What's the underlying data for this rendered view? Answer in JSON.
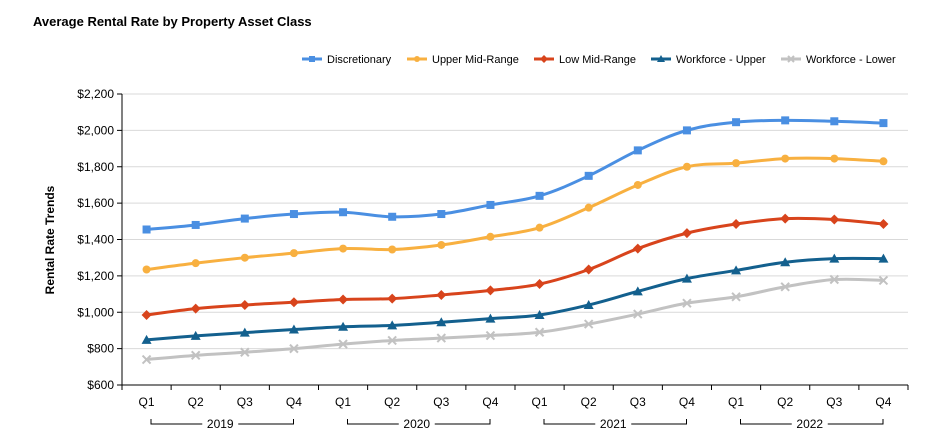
{
  "chart_data": {
    "type": "line",
    "title": "Average Rental Rate by Property Asset Class",
    "ylabel": "Rental Rate Trends",
    "xlabel": "",
    "ylim": [
      600,
      2200
    ],
    "y_ticks": [
      600,
      800,
      1000,
      1200,
      1400,
      1600,
      1800,
      2000,
      2200
    ],
    "y_tick_labels": [
      "$600",
      "$800",
      "$1,000",
      "$1,200",
      "$1,400",
      "$1,600",
      "$1,800",
      "$2,000",
      "$2,200"
    ],
    "grid": true,
    "legend_position": "top-right",
    "categories": [
      "Q1",
      "Q2",
      "Q3",
      "Q4",
      "Q1",
      "Q2",
      "Q3",
      "Q4",
      "Q1",
      "Q2",
      "Q3",
      "Q4",
      "Q1",
      "Q2",
      "Q3",
      "Q4"
    ],
    "groups": [
      {
        "label": "2019",
        "count": 4
      },
      {
        "label": "2020",
        "count": 4
      },
      {
        "label": "2021",
        "count": 4
      },
      {
        "label": "2022",
        "count": 4
      }
    ],
    "series": [
      {
        "name": "Discretionary",
        "color": "#4a8fe2",
        "marker": "square",
        "values": [
          1455,
          1480,
          1515,
          1540,
          1550,
          1525,
          1540,
          1590,
          1640,
          1750,
          1890,
          2000,
          2045,
          2055,
          2050,
          2040
        ]
      },
      {
        "name": "Upper Mid-Range",
        "color": "#f8b040",
        "marker": "circle",
        "values": [
          1235,
          1270,
          1300,
          1325,
          1350,
          1345,
          1370,
          1415,
          1465,
          1575,
          1700,
          1800,
          1820,
          1845,
          1845,
          1830
        ]
      },
      {
        "name": "Low Mid-Range",
        "color": "#d8441c",
        "marker": "diamond",
        "values": [
          985,
          1020,
          1040,
          1055,
          1070,
          1075,
          1095,
          1120,
          1155,
          1235,
          1350,
          1435,
          1485,
          1515,
          1510,
          1485
        ]
      },
      {
        "name": "Workforce - Upper",
        "color": "#13608e",
        "marker": "triangle",
        "values": [
          848,
          870,
          888,
          905,
          920,
          928,
          945,
          965,
          985,
          1040,
          1115,
          1185,
          1230,
          1275,
          1295,
          1295
        ]
      },
      {
        "name": "Workforce - Lower",
        "color": "#c2c2c2",
        "marker": "x",
        "values": [
          740,
          763,
          780,
          800,
          825,
          845,
          858,
          872,
          890,
          935,
          990,
          1050,
          1085,
          1140,
          1180,
          1175
        ]
      }
    ]
  }
}
